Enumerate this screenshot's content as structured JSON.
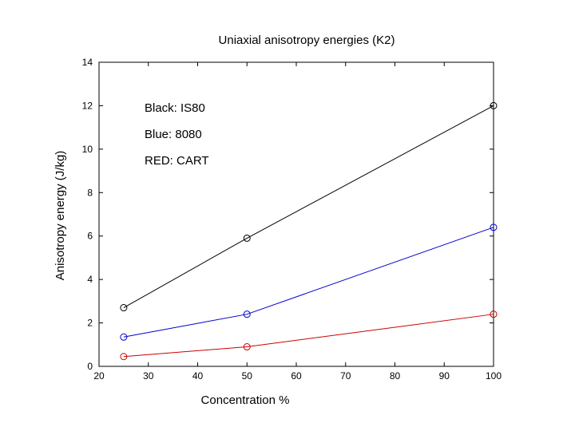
{
  "chart_data": {
    "type": "line",
    "title": "Uniaxial anisotropy energies (K2)",
    "xlabel": "Concentration %",
    "ylabel": "Anisotropy energy (J/kg)",
    "xlim": [
      20,
      100
    ],
    "ylim": [
      0,
      14
    ],
    "xticks": [
      20,
      30,
      40,
      50,
      60,
      70,
      80,
      90,
      100
    ],
    "yticks": [
      0,
      2,
      4,
      6,
      8,
      10,
      12,
      14
    ],
    "grid": false,
    "x": [
      25,
      50,
      100
    ],
    "series": [
      {
        "name": "IS80",
        "color": "#000000",
        "values": [
          2.7,
          5.9,
          12.0
        ]
      },
      {
        "name": "8080",
        "color": "#0000cc",
        "values": [
          1.35,
          2.4,
          6.4
        ]
      },
      {
        "name": "CART",
        "color": "#cc0000",
        "values": [
          0.45,
          0.9,
          2.4
        ]
      }
    ],
    "annotations": [
      "Black: IS80",
      "Blue: 8080",
      "RED: CART"
    ]
  }
}
